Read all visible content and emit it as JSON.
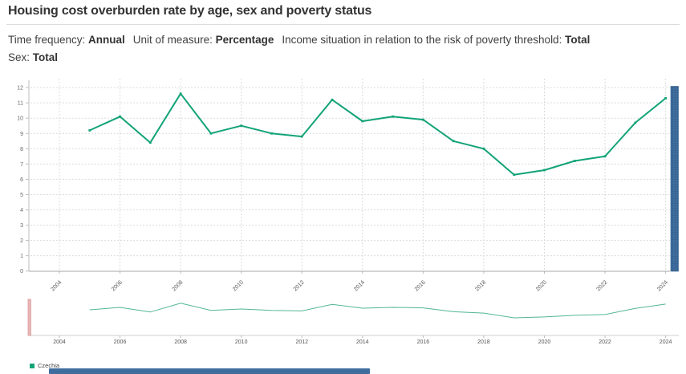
{
  "title": "Housing cost overburden rate by age, sex and poverty status",
  "filters_line1": [
    {
      "label": "Time frequency:",
      "value": "Annual"
    },
    {
      "label": "Unit of measure:",
      "value": "Percentage"
    },
    {
      "label": "Income situation in relation to the risk of poverty threshold:",
      "value": "Total"
    }
  ],
  "filters_line2": [
    {
      "label": "Sex:",
      "value": "Total"
    }
  ],
  "chart_data": {
    "type": "line",
    "title": "",
    "xlabel": "",
    "ylabel": "",
    "ylim": [
      0,
      12
    ],
    "yticks": [
      0,
      1,
      2,
      3,
      4,
      5,
      6,
      7,
      8,
      9,
      10,
      11,
      12
    ],
    "xticks": [
      2004,
      2006,
      2008,
      2010,
      2012,
      2014,
      2016,
      2018,
      2020,
      2022,
      2024
    ],
    "xrange": [
      2004,
      2024
    ],
    "grid": true,
    "legend_position": "bottom-left",
    "navigator": true,
    "series": [
      {
        "name": "Czechia",
        "color": "#12a377",
        "x": [
          2005,
          2006,
          2007,
          2008,
          2009,
          2010,
          2011,
          2012,
          2013,
          2014,
          2015,
          2016,
          2017,
          2018,
          2019,
          2020,
          2021,
          2022,
          2023,
          2024
        ],
        "values": [
          9.2,
          10.1,
          8.4,
          11.6,
          9.0,
          9.5,
          9.0,
          8.8,
          11.2,
          9.8,
          10.1,
          9.9,
          8.5,
          8.0,
          6.3,
          6.6,
          7.2,
          7.5,
          9.7,
          11.3
        ]
      }
    ]
  },
  "legend": {
    "items": [
      {
        "label": "Czechia",
        "color": "#12a377"
      }
    ]
  },
  "colors": {
    "series_line": "#12a377",
    "navigator_line": "#52b697",
    "navigator_handle_fill": "#eab6b6",
    "navigator_handle_border": "#d89a9a",
    "scrollbar_fill": "#3e6d9d",
    "scrollbar_dots": "#2f5a88",
    "bottom_scrollbar_fill": "#3f6e9e",
    "grid_line": "#dcdcdc",
    "axis_line": "#bdbdbd"
  }
}
